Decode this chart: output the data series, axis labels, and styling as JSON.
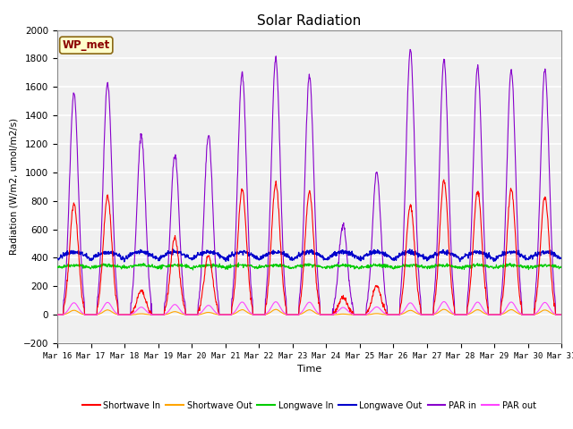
{
  "title": "Solar Radiation",
  "ylabel": "Radiation (W/m2, umol/m2/s)",
  "xlabel": "Time",
  "ylim": [
    -200,
    2000
  ],
  "station_label": "WP_met",
  "figure_facecolor": "#ffffff",
  "plot_facecolor": "#f0f0f0",
  "grid_color": "#ffffff",
  "x_tick_labels": [
    "Mar 16",
    "Mar 17",
    "Mar 18",
    "Mar 19",
    "Mar 20",
    "Mar 21",
    "Mar 22",
    "Mar 23",
    "Mar 24",
    "Mar 25",
    "Mar 26",
    "Mar 27",
    "Mar 28",
    "Mar 29",
    "Mar 30",
    "Mar 31"
  ],
  "series": {
    "shortwave_in": {
      "color": "#ff0000",
      "label": "Shortwave In"
    },
    "shortwave_out": {
      "color": "#ffa500",
      "label": "Shortwave Out"
    },
    "longwave_in": {
      "color": "#00cc00",
      "label": "Longwave In"
    },
    "longwave_out": {
      "color": "#0000cc",
      "label": "Longwave Out"
    },
    "par_in": {
      "color": "#8800cc",
      "label": "PAR in"
    },
    "par_out": {
      "color": "#ff44ff",
      "label": "PAR out"
    }
  },
  "yticks": [
    -200,
    0,
    200,
    400,
    600,
    800,
    1000,
    1200,
    1400,
    1600,
    1800,
    2000
  ],
  "n_days": 15,
  "pts_per_day": 96,
  "day_peaks_sw": [
    780,
    830,
    165,
    540,
    420,
    880,
    920,
    860,
    120,
    200,
    770,
    940,
    870,
    880,
    830
  ],
  "day_peaks_par": [
    1560,
    1630,
    1260,
    1120,
    1260,
    1700,
    1800,
    1680,
    630,
    1000,
    1860,
    1790,
    1740,
    1720,
    1720
  ],
  "lw_in_base": 330,
  "lw_out_base": 390,
  "par_out_peak": 90
}
